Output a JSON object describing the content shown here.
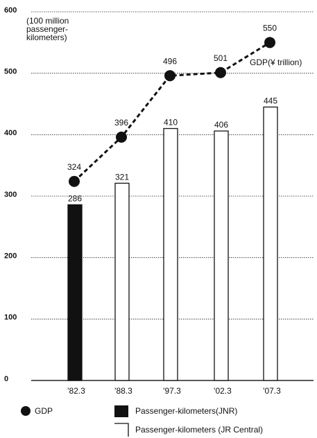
{
  "chart_data": {
    "type": "bar-line",
    "ylabel_lines": [
      "(100 million",
      "passenger-",
      "kilometers)"
    ],
    "gdp_label": "GDP(¥ trillion)",
    "categories": [
      "'82.3",
      "'88.3",
      "'97.3",
      "'02.3",
      "'07.3"
    ],
    "series": [
      {
        "name": "Passenger-kilometers(JNR)",
        "kind": "bar",
        "color": "#111111",
        "values": [
          286,
          null,
          null,
          null,
          null
        ]
      },
      {
        "name": "Passenger-kilometers (JR Central)",
        "kind": "bar",
        "color": "#ffffff",
        "values": [
          null,
          321,
          410,
          406,
          445
        ]
      },
      {
        "name": "GDP",
        "kind": "line",
        "color": "#111111",
        "values": [
          324,
          396,
          496,
          501,
          550
        ]
      }
    ],
    "ylim": [
      0,
      600
    ],
    "yticks": [
      0,
      100,
      200,
      300,
      400,
      500,
      600
    ],
    "grid": true
  }
}
